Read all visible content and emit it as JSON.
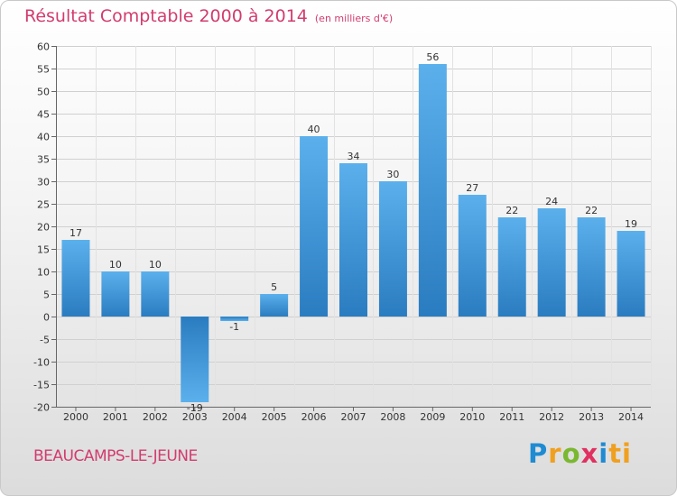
{
  "chart_data": {
    "type": "bar",
    "title": "Résultat Comptable 2000 à 2014",
    "subtitle": "(en milliers d'€)",
    "categories": [
      "2000",
      "2001",
      "2002",
      "2003",
      "2004",
      "2005",
      "2006",
      "2007",
      "2008",
      "2009",
      "2010",
      "2011",
      "2012",
      "2013",
      "2014"
    ],
    "values": [
      17,
      10,
      10,
      -19,
      -1,
      5,
      40,
      34,
      30,
      56,
      27,
      22,
      24,
      22,
      19
    ],
    "data_labels": [
      "17",
      "10",
      "10",
      "-19",
      "-1",
      "5",
      "40",
      "34",
      "30",
      "56",
      "27",
      "22",
      "24",
      "22",
      "19"
    ],
    "ylim": [
      -20,
      60
    ],
    "yticks": [
      -20,
      -15,
      -10,
      -5,
      0,
      5,
      10,
      15,
      20,
      25,
      30,
      35,
      40,
      45,
      50,
      55,
      60
    ],
    "xlabel": "",
    "ylabel": "",
    "grid": true,
    "bar_color": "#3a95d8"
  },
  "footer": {
    "commune": "BEAUCAMPS-LE-JEUNE",
    "brand": [
      "P",
      "r",
      "o",
      "x",
      "i",
      "ti"
    ]
  }
}
